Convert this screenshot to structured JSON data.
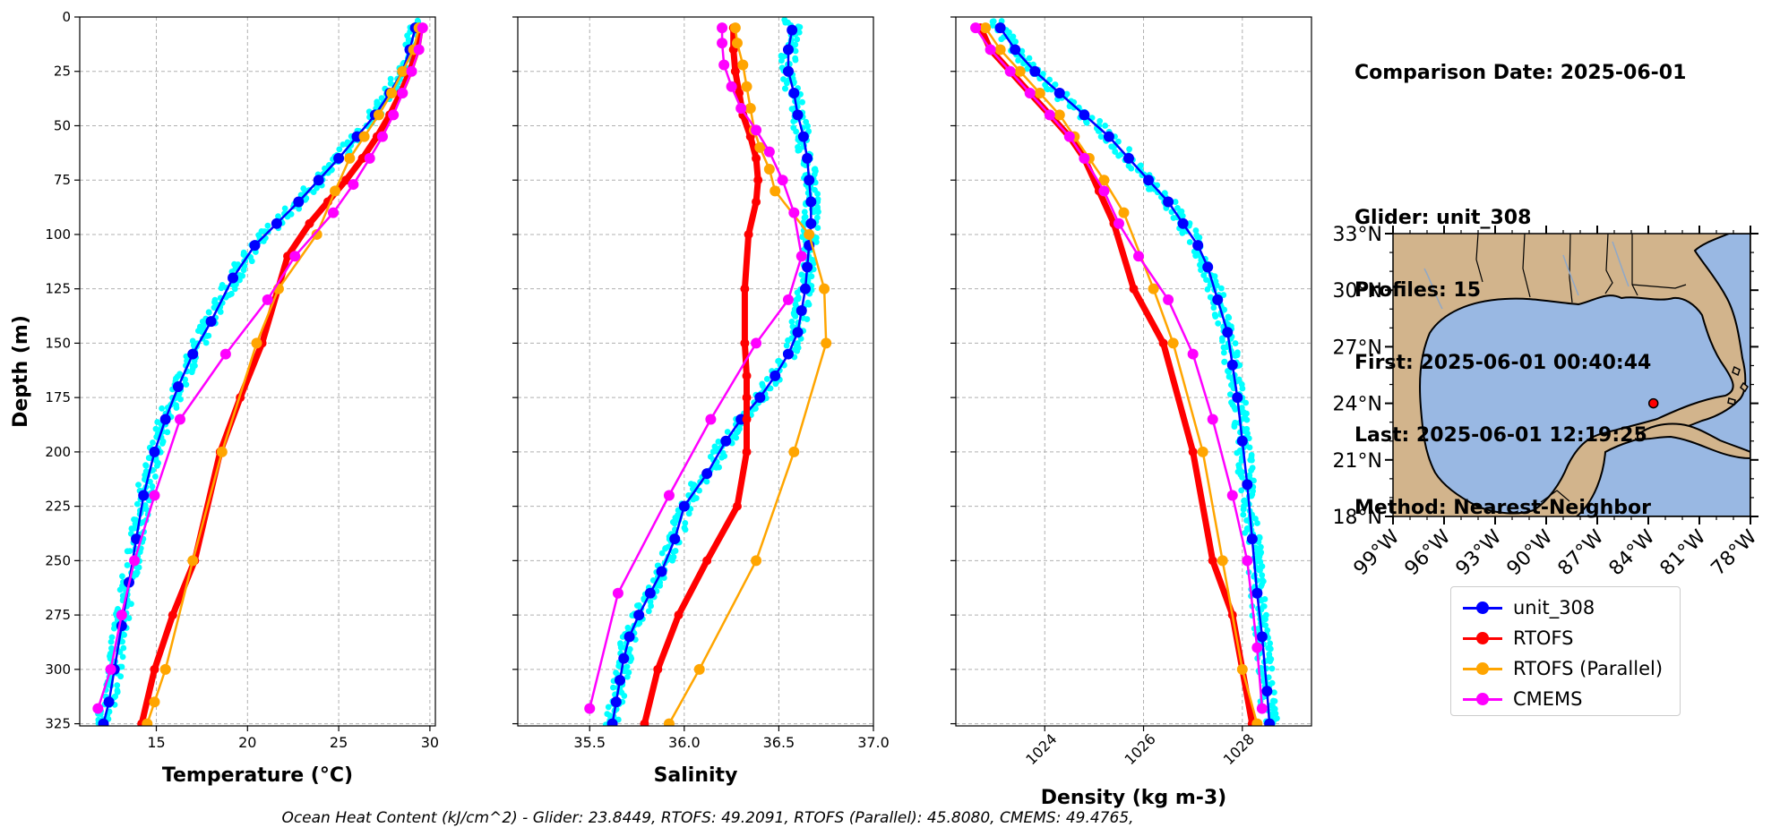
{
  "info": {
    "comparison_date": "Comparison Date: 2025-06-01",
    "glider": "Glider: unit_308",
    "profiles": "Profiles: 15",
    "first": "First: 2025-06-01 00:40:44",
    "last": "Last: 2025-06-01 12:19:25",
    "method": "Method: Nearest-Neighbor"
  },
  "footer": "Ocean Heat Content (kJ/cm^2) - Glider: 23.8449,  RTOFS: 49.2091,  RTOFS (Parallel): 45.8080,  CMEMS: 49.4765,",
  "colors": {
    "glider": "#0000ff",
    "glider_scatter": "#00ffff",
    "rtofs": "#ff0000",
    "rtofs_parallel": "#ffa500",
    "cmems": "#ff00ff",
    "land": "#d2b48c",
    "water": "#99b8e3"
  },
  "legend": [
    {
      "name": "unit_308",
      "color": "#0000ff"
    },
    {
      "name": "RTOFS",
      "color": "#ff0000"
    },
    {
      "name": "RTOFS (Parallel)",
      "color": "#ffa500"
    },
    {
      "name": "CMEMS",
      "color": "#ff00ff"
    }
  ],
  "chart_data": [
    {
      "type": "line",
      "xlabel": "Temperature (°C)",
      "ylabel": "Depth (m)",
      "xlim": [
        10.8,
        30.3
      ],
      "ylim": [
        326,
        0
      ],
      "xticks": [
        15,
        20,
        25,
        30
      ],
      "yticks": [
        0,
        25,
        50,
        75,
        100,
        125,
        150,
        175,
        200,
        225,
        250,
        275,
        300,
        325
      ],
      "grid": true,
      "series": [
        {
          "name": "unit_308",
          "x": [
            29.2,
            28.9,
            28.5,
            27.8,
            27.0,
            26.0,
            25.0,
            23.9,
            22.8,
            21.6,
            20.4,
            19.2,
            18.0,
            17.0,
            16.2,
            15.5,
            14.9,
            14.3,
            13.9,
            13.5,
            13.1,
            12.7,
            12.4,
            12.1
          ],
          "y": [
            5,
            15,
            25,
            35,
            45,
            55,
            65,
            75,
            85,
            95,
            105,
            120,
            140,
            155,
            170,
            185,
            200,
            220,
            240,
            260,
            280,
            300,
            315,
            325
          ]
        },
        {
          "name": "RTOFS",
          "x": [
            29.5,
            29.3,
            28.9,
            28.4,
            27.8,
            27.1,
            26.3,
            25.4,
            24.4,
            23.4,
            22.2,
            20.8,
            19.6,
            18.5,
            17.1,
            15.9,
            14.9,
            14.2
          ],
          "y": [
            5,
            15,
            25,
            35,
            45,
            55,
            65,
            75,
            85,
            95,
            110,
            150,
            175,
            200,
            250,
            275,
            300,
            325
          ]
        },
        {
          "name": "RTOFS (Parallel)",
          "x": [
            29.4,
            29.1,
            28.5,
            27.9,
            27.2,
            26.4,
            25.6,
            24.8,
            23.8,
            21.7,
            20.5,
            18.6,
            17.0,
            15.5,
            14.9,
            14.5
          ],
          "y": [
            5,
            15,
            25,
            35,
            45,
            55,
            65,
            80,
            100,
            125,
            150,
            200,
            250,
            300,
            315,
            325
          ]
        },
        {
          "name": "CMEMS",
          "x": [
            29.6,
            29.4,
            29.0,
            28.5,
            28.0,
            27.4,
            26.7,
            25.8,
            24.7,
            22.6,
            21.1,
            18.8,
            16.3,
            14.9,
            13.8,
            13.1,
            12.5,
            11.8
          ],
          "y": [
            5,
            15,
            25,
            35,
            45,
            55,
            65,
            77,
            90,
            110,
            130,
            155,
            185,
            220,
            250,
            275,
            300,
            318
          ]
        }
      ]
    },
    {
      "type": "line",
      "xlabel": "Salinity",
      "ylabel": "",
      "xlim": [
        35.12,
        37.0
      ],
      "ylim": [
        326,
        0
      ],
      "xticks": [
        35.5,
        36.0,
        36.5,
        37.0
      ],
      "yticks": [
        0,
        25,
        50,
        75,
        100,
        125,
        150,
        175,
        200,
        225,
        250,
        275,
        300,
        325
      ],
      "grid": true,
      "series": [
        {
          "name": "unit_308",
          "x": [
            36.57,
            36.55,
            36.55,
            36.58,
            36.6,
            36.63,
            36.65,
            36.66,
            36.67,
            36.67,
            36.66,
            36.65,
            36.64,
            36.62,
            36.6,
            36.55,
            36.48,
            36.4,
            36.3,
            36.22,
            36.12,
            36.0,
            35.95,
            35.88,
            35.82,
            35.76,
            35.71,
            35.68,
            35.66,
            35.64,
            35.62
          ],
          "y": [
            6,
            15,
            25,
            35,
            45,
            55,
            65,
            75,
            85,
            95,
            105,
            115,
            125,
            135,
            145,
            155,
            165,
            175,
            185,
            195,
            210,
            225,
            240,
            255,
            265,
            275,
            285,
            295,
            305,
            315,
            325
          ]
        },
        {
          "name": "RTOFS",
          "x": [
            36.26,
            36.26,
            36.27,
            36.29,
            36.31,
            36.35,
            36.38,
            36.39,
            36.38,
            36.34,
            36.32,
            36.32,
            36.33,
            36.33,
            36.33,
            36.33,
            36.28,
            36.12,
            35.97,
            35.86,
            35.79
          ],
          "y": [
            5,
            15,
            25,
            35,
            45,
            55,
            65,
            75,
            85,
            100,
            125,
            150,
            165,
            175,
            185,
            200,
            225,
            250,
            275,
            300,
            325
          ]
        },
        {
          "name": "RTOFS (Parallel)",
          "x": [
            36.27,
            36.28,
            36.31,
            36.33,
            36.35,
            36.37,
            36.4,
            36.45,
            36.48,
            36.66,
            36.74,
            36.75,
            36.58,
            36.38,
            36.08,
            35.92
          ],
          "y": [
            5,
            12,
            22,
            32,
            42,
            52,
            60,
            70,
            80,
            100,
            125,
            150,
            200,
            250,
            300,
            325
          ]
        },
        {
          "name": "CMEMS",
          "x": [
            36.2,
            36.2,
            36.21,
            36.25,
            36.3,
            36.38,
            36.45,
            36.52,
            36.58,
            36.62,
            36.55,
            36.38,
            36.14,
            35.92,
            35.65,
            35.5
          ],
          "y": [
            5,
            12,
            22,
            32,
            42,
            52,
            62,
            75,
            90,
            110,
            130,
            150,
            185,
            220,
            265,
            318
          ]
        }
      ]
    },
    {
      "type": "line",
      "xlabel": "Density (kg m-3)",
      "ylabel": "",
      "xlim": [
        1022.2,
        1029.4
      ],
      "ylim": [
        326,
        0
      ],
      "xticks": [
        1024,
        1026,
        1028
      ],
      "yticks": [
        0,
        25,
        50,
        75,
        100,
        125,
        150,
        175,
        200,
        225,
        250,
        275,
        300,
        325
      ],
      "grid": true,
      "series": [
        {
          "name": "unit_308",
          "x": [
            1023.1,
            1023.4,
            1023.8,
            1024.3,
            1024.8,
            1025.3,
            1025.7,
            1026.1,
            1026.5,
            1026.8,
            1027.1,
            1027.3,
            1027.5,
            1027.7,
            1027.8,
            1027.9,
            1028.0,
            1028.1,
            1028.2,
            1028.3,
            1028.4,
            1028.5,
            1028.55
          ],
          "y": [
            5,
            15,
            25,
            35,
            45,
            55,
            65,
            75,
            85,
            95,
            105,
            115,
            130,
            145,
            160,
            175,
            195,
            215,
            240,
            265,
            285,
            310,
            325
          ]
        },
        {
          "name": "RTOFS",
          "x": [
            1022.7,
            1022.9,
            1023.3,
            1023.7,
            1024.1,
            1024.5,
            1024.8,
            1025.1,
            1025.4,
            1025.8,
            1026.4,
            1027.0,
            1027.4,
            1027.8,
            1028.0,
            1028.2
          ],
          "y": [
            5,
            15,
            25,
            35,
            45,
            55,
            65,
            80,
            95,
            125,
            150,
            200,
            250,
            275,
            300,
            325
          ]
        },
        {
          "name": "RTOFS (Parallel)",
          "x": [
            1022.8,
            1023.1,
            1023.5,
            1023.9,
            1024.3,
            1024.6,
            1024.9,
            1025.2,
            1025.6,
            1026.2,
            1026.6,
            1027.2,
            1027.6,
            1028.0,
            1028.3
          ],
          "y": [
            5,
            15,
            25,
            35,
            45,
            55,
            65,
            75,
            90,
            125,
            150,
            200,
            250,
            300,
            325
          ]
        },
        {
          "name": "CMEMS",
          "x": [
            1022.6,
            1022.9,
            1023.3,
            1023.7,
            1024.1,
            1024.5,
            1024.8,
            1025.2,
            1025.5,
            1025.9,
            1026.5,
            1027.0,
            1027.4,
            1027.8,
            1028.1,
            1028.3,
            1028.4
          ],
          "y": [
            5,
            15,
            25,
            35,
            45,
            55,
            65,
            80,
            95,
            110,
            130,
            155,
            185,
            220,
            250,
            290,
            318
          ]
        }
      ]
    }
  ],
  "map": {
    "lon_ticks": [
      "99°W",
      "96°W",
      "93°W",
      "90°W",
      "87°W",
      "84°W",
      "81°W",
      "78°W"
    ],
    "lat_ticks": [
      "33°N",
      "30°N",
      "27°N",
      "24°N",
      "21°N",
      "18°N"
    ],
    "lon_range": [
      -99,
      -78
    ],
    "lat_range": [
      18,
      33
    ],
    "glider_position": {
      "lon": -83.7,
      "lat": 24.0
    }
  }
}
